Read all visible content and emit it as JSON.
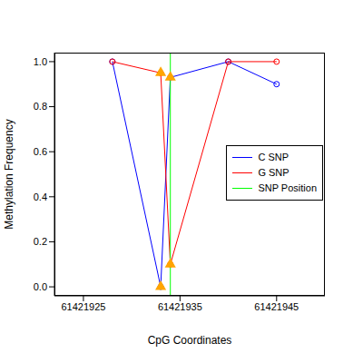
{
  "chart_data": {
    "type": "line",
    "x_label": "CpG Coordinates",
    "y_label": "Methylation Frequency",
    "xlim": [
      61421922,
      61421950
    ],
    "xticks": [
      61421925,
      61421935,
      61421945
    ],
    "ylim": [
      -0.04,
      1.04
    ],
    "yticks": [
      {
        "value": 0,
        "label": "0.0"
      },
      {
        "value": 0.2,
        "label": "0.2"
      },
      {
        "value": 0.4,
        "label": "0.4"
      },
      {
        "value": 0.6,
        "label": "0.6"
      },
      {
        "value": 0.8,
        "label": "0.8"
      },
      {
        "value": 1,
        "label": "1.0"
      }
    ],
    "legend": "right",
    "series": [
      {
        "name": "C SNP",
        "color": "#0000ff",
        "marker": "circle",
        "x": [
          61421928,
          61421933,
          61421934,
          61421940,
          61421945
        ],
        "values": [
          1.0,
          0.0,
          0.93,
          1.0,
          0.9
        ]
      },
      {
        "name": "G SNP",
        "color": "#ff0000",
        "marker": "circle",
        "x": [
          61421928,
          61421933,
          61421934,
          61421940,
          61421945
        ],
        "values": [
          1.0,
          0.95,
          0.1,
          1.0,
          1.0
        ]
      },
      {
        "name": "SNP Position",
        "type": "vline",
        "color": "#00ff00",
        "x": [
          61421934
        ]
      },
      {
        "type": "scatter",
        "color": "#ffa500",
        "marker": "triangle",
        "x": [
          61421933,
          61421934,
          61421933,
          61421934
        ],
        "values": [
          0.0,
          0.93,
          0.95,
          0.1
        ]
      }
    ]
  }
}
